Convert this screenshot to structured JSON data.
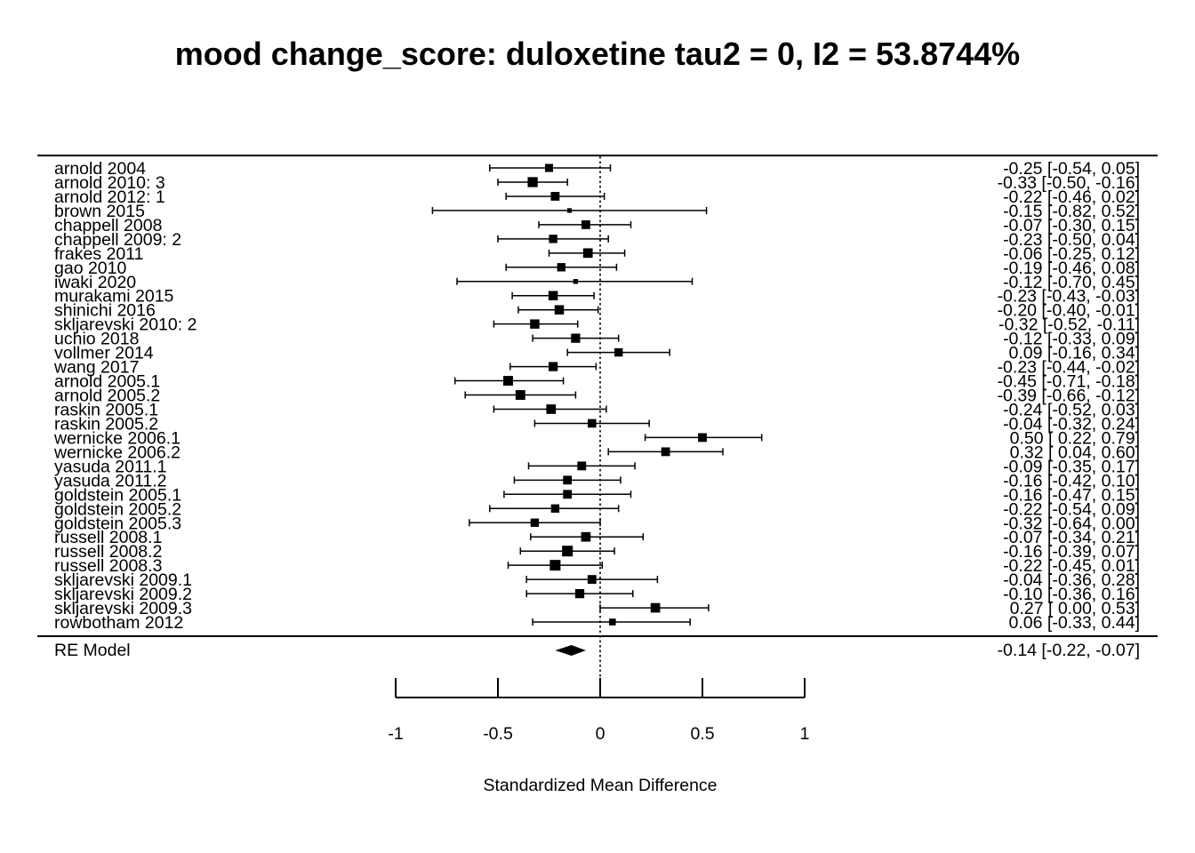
{
  "chart_data": {
    "type": "forest",
    "title": "mood change_score: duloxetine tau2 = 0, I2 = 53.8744%",
    "xlabel": "Standardized Mean Difference",
    "xlim": [
      -1,
      1
    ],
    "xticks": [
      "-1",
      "-0.5",
      "0",
      "0.5",
      "1"
    ],
    "tick_values": [
      -1,
      -0.5,
      0,
      0.5,
      1
    ],
    "reference_line": 0,
    "studies": [
      {
        "name": "arnold 2004",
        "est": -0.25,
        "lo": -0.54,
        "hi": 0.05,
        "ci_text": "-0.25 [-0.54,  0.05]",
        "weight": 0.55
      },
      {
        "name": "arnold 2010: 3",
        "est": -0.33,
        "lo": -0.5,
        "hi": -0.16,
        "ci_text": "-0.33 [-0.50, -0.16]",
        "weight": 0.75
      },
      {
        "name": "arnold 2012: 1",
        "est": -0.22,
        "lo": -0.46,
        "hi": 0.02,
        "ci_text": "-0.22 [-0.46,  0.02]",
        "weight": 0.62
      },
      {
        "name": "brown 2015",
        "est": -0.15,
        "lo": -0.82,
        "hi": 0.52,
        "ci_text": "-0.15 [-0.82,  0.52]",
        "weight": 0.2
      },
      {
        "name": "chappell 2008",
        "est": -0.07,
        "lo": -0.3,
        "hi": 0.15,
        "ci_text": "-0.07 [-0.30,  0.15]",
        "weight": 0.62
      },
      {
        "name": "chappell 2009: 2",
        "est": -0.23,
        "lo": -0.5,
        "hi": 0.04,
        "ci_text": "-0.23 [-0.50,  0.04]",
        "weight": 0.58
      },
      {
        "name": "frakes 2011",
        "est": -0.06,
        "lo": -0.25,
        "hi": 0.12,
        "ci_text": "-0.06 [-0.25,  0.12]",
        "weight": 0.7
      },
      {
        "name": "gao 2010",
        "est": -0.19,
        "lo": -0.46,
        "hi": 0.08,
        "ci_text": "-0.19 [-0.46,  0.08]",
        "weight": 0.58
      },
      {
        "name": "iwaki 2020",
        "est": -0.12,
        "lo": -0.7,
        "hi": 0.45,
        "ci_text": "-0.12 [-0.70,  0.45]",
        "weight": 0.22
      },
      {
        "name": "murakami 2015",
        "est": -0.23,
        "lo": -0.43,
        "hi": -0.03,
        "ci_text": "-0.23 [-0.43, -0.03]",
        "weight": 0.68
      },
      {
        "name": "shinichi 2016",
        "est": -0.2,
        "lo": -0.4,
        "hi": -0.01,
        "ci_text": "-0.20 [-0.40, -0.01]",
        "weight": 0.68
      },
      {
        "name": "skljarevski 2010: 2",
        "est": -0.32,
        "lo": -0.52,
        "hi": -0.11,
        "ci_text": "-0.32 [-0.52, -0.11]",
        "weight": 0.68
      },
      {
        "name": "uchio 2018",
        "est": -0.12,
        "lo": -0.33,
        "hi": 0.09,
        "ci_text": "-0.12 [-0.33,  0.09]",
        "weight": 0.66
      },
      {
        "name": "vollmer 2014",
        "est": 0.09,
        "lo": -0.16,
        "hi": 0.34,
        "ci_text": "0.09 [-0.16,  0.34]",
        "weight": 0.58
      },
      {
        "name": "wang 2017",
        "est": -0.23,
        "lo": -0.44,
        "hi": -0.02,
        "ci_text": "-0.23 [-0.44, -0.02]",
        "weight": 0.66
      },
      {
        "name": "arnold 2005.1",
        "est": -0.45,
        "lo": -0.71,
        "hi": -0.18,
        "ci_text": "-0.45 [-0.71, -0.18]",
        "weight": 0.72
      },
      {
        "name": "arnold 2005.2",
        "est": -0.39,
        "lo": -0.66,
        "hi": -0.12,
        "ci_text": "-0.39 [-0.66, -0.12]",
        "weight": 0.72
      },
      {
        "name": "raskin 2005.1",
        "est": -0.24,
        "lo": -0.52,
        "hi": 0.03,
        "ci_text": "-0.24 [-0.52,  0.03]",
        "weight": 0.7
      },
      {
        "name": "raskin 2005.2",
        "est": -0.04,
        "lo": -0.32,
        "hi": 0.24,
        "ci_text": "-0.04 [-0.32,  0.24]",
        "weight": 0.6
      },
      {
        "name": "wernicke 2006.1",
        "est": 0.5,
        "lo": 0.22,
        "hi": 0.79,
        "ci_text": "0.50 [ 0.22,  0.79]",
        "weight": 0.62
      },
      {
        "name": "wernicke 2006.2",
        "est": 0.32,
        "lo": 0.04,
        "hi": 0.6,
        "ci_text": "0.32 [ 0.04,  0.60]",
        "weight": 0.62
      },
      {
        "name": "yasuda 2011.1",
        "est": -0.09,
        "lo": -0.35,
        "hi": 0.17,
        "ci_text": "-0.09 [-0.35,  0.17]",
        "weight": 0.62
      },
      {
        "name": "yasuda 2011.2",
        "est": -0.16,
        "lo": -0.42,
        "hi": 0.1,
        "ci_text": "-0.16 [-0.42,  0.10]",
        "weight": 0.62
      },
      {
        "name": "goldstein 2005.1",
        "est": -0.16,
        "lo": -0.47,
        "hi": 0.15,
        "ci_text": "-0.16 [-0.47,  0.15]",
        "weight": 0.62
      },
      {
        "name": "goldstein 2005.2",
        "est": -0.22,
        "lo": -0.54,
        "hi": 0.09,
        "ci_text": "-0.22 [-0.54,  0.09]",
        "weight": 0.58
      },
      {
        "name": "goldstein 2005.3",
        "est": -0.32,
        "lo": -0.64,
        "hi": 0.0,
        "ci_text": "-0.32 [-0.64,  0.00]",
        "weight": 0.58
      },
      {
        "name": "russell 2008.1",
        "est": -0.07,
        "lo": -0.34,
        "hi": 0.21,
        "ci_text": "-0.07 [-0.34,  0.21]",
        "weight": 0.7
      },
      {
        "name": "russell 2008.2",
        "est": -0.16,
        "lo": -0.39,
        "hi": 0.07,
        "ci_text": "-0.16 [-0.39,  0.07]",
        "weight": 0.82
      },
      {
        "name": "russell 2008.3",
        "est": -0.22,
        "lo": -0.45,
        "hi": 0.01,
        "ci_text": "-0.22 [-0.45,  0.01]",
        "weight": 0.82
      },
      {
        "name": "skljarevski 2009.1",
        "est": -0.04,
        "lo": -0.36,
        "hi": 0.28,
        "ci_text": "-0.04 [-0.36,  0.28]",
        "weight": 0.62
      },
      {
        "name": "skljarevski 2009.2",
        "est": -0.1,
        "lo": -0.36,
        "hi": 0.16,
        "ci_text": "-0.10 [-0.36,  0.16]",
        "weight": 0.66
      },
      {
        "name": "skljarevski 2009.3",
        "est": 0.27,
        "lo": 0.0,
        "hi": 0.53,
        "ci_text": "0.27 [ 0.00,  0.53]",
        "weight": 0.7
      },
      {
        "name": "rowbotham 2012",
        "est": 0.06,
        "lo": -0.33,
        "hi": 0.44,
        "ci_text": "0.06 [-0.33,  0.44]",
        "weight": 0.42
      }
    ],
    "summary": {
      "name": "RE Model",
      "est": -0.14,
      "lo": -0.22,
      "hi": -0.07,
      "ci_text": "-0.14 [-0.22, -0.07]"
    }
  }
}
